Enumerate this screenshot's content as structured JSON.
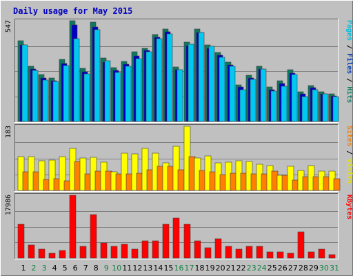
{
  "chart_data": {
    "type": "bar",
    "title": "Daily usage for May 2015",
    "categories": [
      "1",
      "2",
      "3",
      "4",
      "5",
      "6",
      "7",
      "8",
      "9",
      "10",
      "11",
      "12",
      "13",
      "14",
      "15",
      "16",
      "17",
      "18",
      "19",
      "20",
      "21",
      "22",
      "23",
      "24",
      "25",
      "26",
      "27",
      "28",
      "29",
      "30",
      "31"
    ],
    "weekend_days": [
      "2",
      "3",
      "9",
      "10",
      "16",
      "17",
      "23",
      "24",
      "30",
      "31"
    ],
    "panels": [
      {
        "key": "hits_panel",
        "max_label": "547",
        "ylim": [
          0,
          547
        ],
        "side_label": [
          {
            "text": "Pages",
            "color": "#00c0e0"
          },
          {
            "text": " / ",
            "color": "#000000"
          },
          {
            "text": "Files",
            "color": "#0040c0"
          },
          {
            "text": " / ",
            "color": "#000000"
          },
          {
            "text": "Hits",
            "color": "#108060"
          }
        ],
        "series": [
          {
            "name": "Hits",
            "color": "#107860",
            "values": [
              437,
              301,
              256,
              236,
              336,
              547,
              289,
              540,
              346,
              294,
              326,
              377,
              398,
              472,
              502,
              296,
              431,
              502,
              414,
              375,
              321,
              197,
              250,
              298,
              186,
              220,
              281,
              161,
              196,
              161,
              150
            ]
          },
          {
            "name": "Files",
            "color": "#0000c0",
            "values": [
              416,
              286,
              236,
              222,
              315,
              525,
              268,
              512,
              321,
              278,
              312,
              356,
              386,
              456,
              488,
              281,
              412,
              483,
              398,
              359,
              309,
              186,
              236,
              286,
              173,
              207,
              262,
              151,
              183,
              148,
              139
            ]
          },
          {
            "name": "Pages",
            "color": "#00c8f0",
            "values": [
              416,
              276,
              226,
              216,
              305,
              451,
              258,
              500,
              331,
              267,
              301,
              342,
              379,
              450,
              476,
              281,
              419,
              483,
              408,
              350,
              301,
              173,
              230,
              283,
              166,
              191,
              253,
              134,
              171,
              148,
              136
            ]
          }
        ]
      },
      {
        "key": "visits_panel",
        "max_label": "183",
        "ylim": [
          0,
          183
        ],
        "side_label": [
          {
            "text": "Sites",
            "color": "#f08000"
          },
          {
            "text": " / ",
            "color": "#000000"
          },
          {
            "text": "Visits",
            "color": "#e0e000"
          }
        ],
        "series": [
          {
            "name": "Visits",
            "color": "#ffff00",
            "values": [
              97,
              96,
              85,
              86,
              96,
              121,
              93,
              95,
              80,
              53,
              107,
              105,
              121,
              107,
              78,
              125,
              183,
              92,
              98,
              78,
              80,
              85,
              83,
              75,
              70,
              43,
              69,
              58,
              71,
              55,
              55
            ]
          },
          {
            "name": "Sites",
            "color": "#ff8000",
            "values": [
              53,
              53,
              32,
              33,
              28,
              83,
              47,
              55,
              55,
              47,
              47,
              50,
              60,
              68,
              68,
              60,
              96,
              58,
              53,
              45,
              50,
              50,
              47,
              48,
              55,
              43,
              30,
              40,
              40,
              40,
              34
            ]
          }
        ]
      },
      {
        "key": "kbytes_panel",
        "max_label": "17986",
        "ylim": [
          0,
          17986
        ],
        "side_label": [
          {
            "text": "KBytes",
            "color": "#ff0000"
          }
        ],
        "series": [
          {
            "name": "KBytes",
            "color": "#ff0000",
            "values": [
              9693,
              3733,
              2497,
              1478,
              2177,
              17986,
              3362,
              12539,
              4327,
              3362,
              3948,
              2497,
              4962,
              4962,
              9693,
              11518,
              9693,
              4962,
              2872,
              5547,
              3362,
              2497,
              3362,
              3362,
              1876,
              1876,
              1478,
              7452,
              1876,
              2497,
              960
            ]
          }
        ]
      }
    ]
  }
}
